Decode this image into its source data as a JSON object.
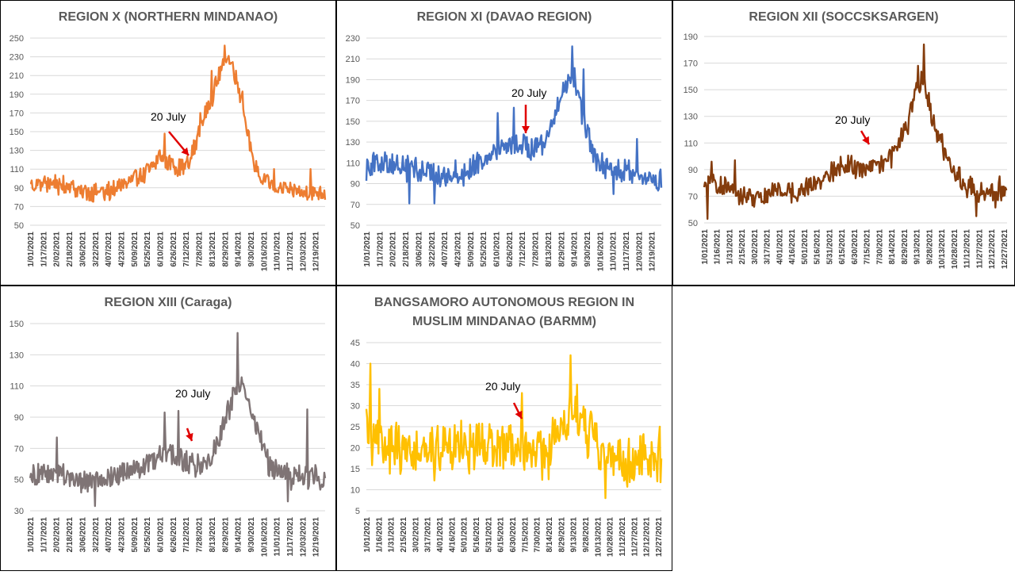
{
  "panels": [
    {
      "title_lines": [
        "REGION X (NORTHERN MINDANAO)"
      ],
      "color": "#ED7D31",
      "annotation": "20 July",
      "chart_data": {
        "type": "line",
        "ylim": [
          50,
          250
        ],
        "yticks": [
          50,
          70,
          90,
          110,
          130,
          150,
          170,
          190,
          210,
          230,
          250
        ],
        "xticks": [
          "1/01/2021",
          "1/17/2021",
          "2/02/2021",
          "2/18/2021",
          "3/06/2021",
          "3/22/2021",
          "4/07/2021",
          "4/23/2021",
          "5/09/2021",
          "5/25/2021",
          "6/10/2021",
          "6/26/2021",
          "7/12/2021",
          "7/28/2021",
          "8/13/2021",
          "8/29/2021",
          "9/14/2021",
          "9/30/2021",
          "10/16/2021",
          "11/01/2021",
          "11/17/2021",
          "12/03/2021",
          "12/19/2021"
        ],
        "x_range": [
          "1/01/2021",
          "12/31/2021"
        ],
        "grid": true,
        "anchors": [
          [
            0,
            92
          ],
          [
            15,
            95
          ],
          [
            30,
            97
          ],
          [
            45,
            93
          ],
          [
            60,
            88
          ],
          [
            75,
            85
          ],
          [
            90,
            87
          ],
          [
            105,
            90
          ],
          [
            120,
            96
          ],
          [
            135,
            102
          ],
          [
            150,
            112
          ],
          [
            160,
            125
          ],
          [
            170,
            117
          ],
          [
            180,
            113
          ],
          [
            190,
            112
          ],
          [
            196,
            118
          ],
          [
            205,
            140
          ],
          [
            215,
            168
          ],
          [
            225,
            190
          ],
          [
            235,
            215
          ],
          [
            242,
            232
          ],
          [
            250,
            220
          ],
          [
            258,
            195
          ],
          [
            266,
            165
          ],
          [
            274,
            120
          ],
          [
            285,
            98
          ],
          [
            300,
            93
          ],
          [
            320,
            87
          ],
          [
            340,
            86
          ],
          [
            364,
            85
          ]
        ],
        "amplitude": 9,
        "spikes": [
          [
            166,
            148
          ],
          [
            210,
            170
          ],
          [
            240,
            242
          ],
          [
            301,
            110
          ],
          [
            346,
            110
          ],
          [
            262,
            193
          ],
          [
            224,
            215
          ]
        ]
      }
    },
    {
      "title_lines": [
        "REGION XI (DAVAO REGION)"
      ],
      "color": "#4472C4",
      "annotation": "20 July",
      "chart_data": {
        "type": "line",
        "ylim": [
          50,
          230
        ],
        "yticks": [
          50,
          70,
          90,
          110,
          130,
          150,
          170,
          190,
          210,
          230
        ],
        "xticks": [
          "1/01/2021",
          "1/17/2021",
          "2/02/2021",
          "2/18/2021",
          "3/06/2021",
          "3/22/2021",
          "4/07/2021",
          "4/23/2021",
          "5/09/2021",
          "5/25/2021",
          "6/10/2021",
          "6/26/2021",
          "7/12/2021",
          "7/28/2021",
          "8/13/2021",
          "8/29/2021",
          "9/14/2021",
          "9/30/2021",
          "10/16/2021",
          "11/01/2021",
          "11/17/2021",
          "12/03/2021",
          "12/19/2021"
        ],
        "x_range": [
          "1/01/2021",
          "12/31/2021"
        ],
        "grid": true,
        "anchors": [
          [
            0,
            108
          ],
          [
            20,
            110
          ],
          [
            45,
            108
          ],
          [
            70,
            102
          ],
          [
            95,
            100
          ],
          [
            125,
            104
          ],
          [
            145,
            115
          ],
          [
            160,
            125
          ],
          [
            175,
            130
          ],
          [
            190,
            127
          ],
          [
            210,
            125
          ],
          [
            225,
            140
          ],
          [
            235,
            160
          ],
          [
            245,
            185
          ],
          [
            255,
            195
          ],
          [
            262,
            180
          ],
          [
            270,
            145
          ],
          [
            285,
            110
          ],
          [
            305,
            105
          ],
          [
            325,
            102
          ],
          [
            345,
            98
          ],
          [
            364,
            93
          ]
        ],
        "amplitude": 11,
        "spikes": [
          [
            53,
            71
          ],
          [
            84,
            71
          ],
          [
            162,
            158
          ],
          [
            182,
            163
          ],
          [
            254,
            222
          ],
          [
            268,
            200
          ],
          [
            334,
            133
          ],
          [
            305,
            80
          ]
        ]
      }
    },
    {
      "title_lines": [
        "REGION XII (SOCCSKSARGEN)"
      ],
      "color": "#843C0C",
      "annotation": "20 July",
      "chart_data": {
        "type": "line",
        "ylim": [
          50,
          190
        ],
        "yticks": [
          50,
          70,
          90,
          110,
          130,
          150,
          170,
          190
        ],
        "xticks": [
          "1/01/2021",
          "1/16/2021",
          "1/31/2021",
          "2/15/2021",
          "3/02/2021",
          "3/17/2021",
          "4/01/2021",
          "4/16/2021",
          "5/01/2021",
          "5/16/2021",
          "5/31/2021",
          "6/15/2021",
          "6/30/2021",
          "7/15/2021",
          "7/30/2021",
          "8/14/2021",
          "8/29/2021",
          "9/13/2021",
          "9/28/2021",
          "10/13/2021",
          "10/28/2021",
          "11/12/2021",
          "11/27/2021",
          "12/12/2021",
          "12/27/2021"
        ],
        "x_range": [
          "1/01/2021",
          "12/31/2021"
        ],
        "grid": true,
        "anchors": [
          [
            0,
            80
          ],
          [
            20,
            79
          ],
          [
            40,
            72
          ],
          [
            60,
            69
          ],
          [
            80,
            73
          ],
          [
            100,
            74
          ],
          [
            120,
            76
          ],
          [
            140,
            82
          ],
          [
            155,
            90
          ],
          [
            170,
            95
          ],
          [
            185,
            92
          ],
          [
            200,
            92
          ],
          [
            215,
            95
          ],
          [
            230,
            105
          ],
          [
            245,
            125
          ],
          [
            255,
            150
          ],
          [
            262,
            158
          ],
          [
            270,
            142
          ],
          [
            280,
            120
          ],
          [
            295,
            97
          ],
          [
            310,
            82
          ],
          [
            330,
            75
          ],
          [
            350,
            72
          ],
          [
            364,
            78
          ]
        ],
        "amplitude": 7,
        "spikes": [
          [
            4,
            53
          ],
          [
            9,
            96
          ],
          [
            37,
            97
          ],
          [
            264,
            184
          ],
          [
            257,
            168
          ],
          [
            327,
            55
          ],
          [
            355,
            85
          ]
        ]
      }
    },
    {
      "title_lines": [
        "REGION XIII (Caraga)"
      ],
      "color": "#7F7475",
      "annotation": "20 July",
      "chart_data": {
        "type": "line",
        "ylim": [
          30,
          150
        ],
        "yticks": [
          30,
          50,
          70,
          90,
          110,
          130,
          150
        ],
        "xticks": [
          "1/01/2021",
          "1/17/2021",
          "2/02/2021",
          "2/18/2021",
          "3/06/2021",
          "3/22/2021",
          "4/07/2021",
          "4/23/2021",
          "5/09/2021",
          "5/25/2021",
          "6/10/2021",
          "6/26/2021",
          "7/12/2021",
          "7/28/2021",
          "8/13/2021",
          "8/29/2021",
          "9/14/2021",
          "9/30/2021",
          "10/16/2021",
          "11/01/2021",
          "11/17/2021",
          "12/03/2021",
          "12/19/2021"
        ],
        "x_range": [
          "1/01/2021",
          "12/31/2021"
        ],
        "grid": true,
        "anchors": [
          [
            0,
            52
          ],
          [
            25,
            55
          ],
          [
            50,
            52
          ],
          [
            75,
            50
          ],
          [
            100,
            52
          ],
          [
            125,
            56
          ],
          [
            145,
            60
          ],
          [
            160,
            65
          ],
          [
            175,
            68
          ],
          [
            190,
            62
          ],
          [
            205,
            60
          ],
          [
            220,
            63
          ],
          [
            232,
            75
          ],
          [
            245,
            95
          ],
          [
            255,
            110
          ],
          [
            262,
            115
          ],
          [
            272,
            100
          ],
          [
            282,
            80
          ],
          [
            295,
            60
          ],
          [
            310,
            55
          ],
          [
            330,
            53
          ],
          [
            364,
            52
          ]
        ],
        "amplitude": 7,
        "spikes": [
          [
            33,
            77
          ],
          [
            80,
            33
          ],
          [
            166,
            93
          ],
          [
            183,
            94
          ],
          [
            256,
            144
          ],
          [
            342,
            95
          ],
          [
            318,
            36
          ]
        ]
      }
    },
    {
      "title_lines": [
        "BANGSAMORO AUTONOMOUS REGION IN",
        "MUSLIM MINDANAO (BARMM)"
      ],
      "color": "#FFC000",
      "annotation": "20 July",
      "chart_data": {
        "type": "line",
        "ylim": [
          5,
          45
        ],
        "yticks": [
          5,
          10,
          15,
          20,
          25,
          30,
          35,
          40,
          45
        ],
        "xticks": [
          "1/01/2021",
          "1/16/2021",
          "1/31/2021",
          "2/15/2021",
          "3/02/2021",
          "3/17/2021",
          "4/01/2021",
          "4/16/2021",
          "5/01/2021",
          "5/16/2021",
          "5/31/2021",
          "6/15/2021",
          "6/30/2021",
          "7/15/2021",
          "7/30/2021",
          "8/14/2021",
          "8/29/2021",
          "9/13/2021",
          "9/28/2021",
          "10/13/2021",
          "10/28/2021",
          "11/12/2021",
          "11/27/2021",
          "12/12/2021",
          "12/27/2021"
        ],
        "x_range": [
          "1/01/2021",
          "12/31/2021"
        ],
        "grid": true,
        "anchors": [
          [
            0,
            25
          ],
          [
            20,
            22
          ],
          [
            50,
            20
          ],
          [
            80,
            20
          ],
          [
            110,
            21
          ],
          [
            140,
            21
          ],
          [
            170,
            21
          ],
          [
            200,
            20
          ],
          [
            220,
            20
          ],
          [
            240,
            24
          ],
          [
            255,
            28
          ],
          [
            270,
            25
          ],
          [
            285,
            21
          ],
          [
            300,
            17
          ],
          [
            320,
            17
          ],
          [
            345,
            18
          ],
          [
            364,
            17
          ]
        ],
        "amplitude": 5.5,
        "spikes": [
          [
            5,
            40
          ],
          [
            16,
            34
          ],
          [
            252,
            42
          ],
          [
            192,
            33
          ],
          [
            295,
            8
          ],
          [
            362,
            25
          ],
          [
            260,
            35
          ]
        ]
      }
    }
  ]
}
